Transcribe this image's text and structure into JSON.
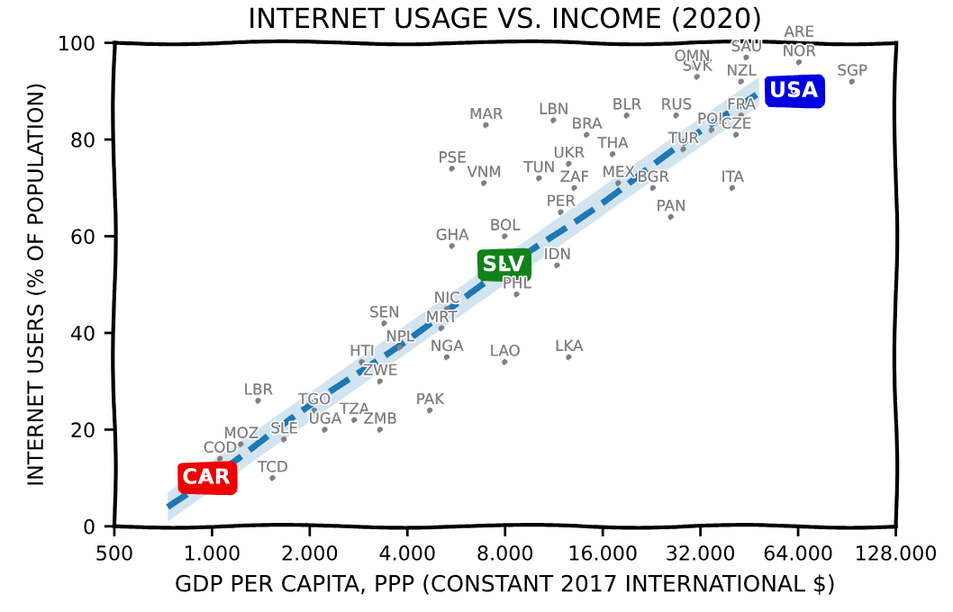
{
  "chart_data": {
    "type": "scatter",
    "title": "INTERNET USAGE VS. INCOME (2020)",
    "xlabel": "GDP PER CAPITA, PPP (CONSTANT 2017 INTERNATIONAL $)",
    "ylabel": "INTERNET USERS (% OF POPULATION)",
    "log": "x",
    "xlim": [
      500,
      128000
    ],
    "ylim": [
      0,
      100
    ],
    "xticks": [
      500,
      {
        "value": 1000,
        "label": "1.000"
      },
      {
        "value": 2000,
        "label": "2.000"
      },
      {
        "value": 4000,
        "label": "4.000"
      },
      {
        "value": 8000,
        "label": "8.000"
      },
      {
        "value": 16000,
        "label": "16.000"
      },
      {
        "value": 32000,
        "label": "32.000"
      },
      {
        "value": 64000,
        "label": "64.000"
      },
      {
        "value": 128000,
        "label": "128.000"
      }
    ],
    "yticks": [
      0,
      20,
      40,
      60,
      80,
      100
    ],
    "series": [
      {
        "type": "line",
        "color": "#1f77b4",
        "line_style": "dashed",
        "x": [
          730,
          48500
        ],
        "values": [
          4,
          90
        ],
        "lower": [
          1,
          87
        ],
        "upper": [
          7,
          93
        ]
      },
      {
        "type": "scatter",
        "color": "#808080",
        "x": [
          7000,
          5500,
          6900,
          5500,
          8000,
          11600,
          8700,
          11900,
          12600,
          13100,
          17900,
          10200,
          14300,
          11300,
          19000,
          27000,
          17200,
          28400,
          22900,
          40200,
          26000,
          42800,
          34700,
          41300,
          31300,
          30200,
          42800,
          44400,
          64500,
          64500,
          94000,
          3400,
          5300,
          5100,
          3800,
          2900,
          5300,
          8000,
          3300,
          1390,
          2070,
          4700,
          2750,
          3300,
          2230,
          1670,
          1230,
          1060,
          1540,
          12600
        ],
        "values": [
          83,
          74,
          71,
          58,
          60,
          54,
          48,
          65,
          75,
          70,
          71,
          72,
          81,
          84,
          85,
          85,
          77,
          78,
          70,
          70,
          64,
          85,
          82,
          81,
          93,
          95,
          92,
          97,
          100,
          96,
          92,
          42,
          45,
          41,
          37,
          34,
          35,
          34,
          30,
          26,
          24,
          24,
          22,
          20,
          20,
          18,
          17,
          14,
          10,
          35
        ],
        "value_labels": [
          "MAR",
          "PSE",
          "VNM",
          "GHA",
          "BOL",
          "IDN",
          "PHL",
          "PER",
          "UKR",
          "ZAF",
          "MEX",
          "TUN",
          "BRA",
          "LBN",
          "BLR",
          "RUS",
          "THA",
          "TUR",
          "BGR",
          "ITA",
          "PAN",
          "FRA",
          "POL",
          "CZE",
          "SVK",
          "OMN",
          "NZL",
          "SAU",
          "ARE",
          "NOR",
          "SGP",
          "SEN",
          "NIC",
          "MRT",
          "NPL",
          "HTI",
          "NGA",
          "LAO",
          "ZWE",
          "LBR",
          "TGO",
          "PAK",
          "TZA",
          "ZMB",
          "UGA",
          "SLE",
          "MOZ",
          "COD",
          "TCD",
          "LKA"
        ]
      },
      {
        "type": "scatter",
        "colors": [
          "#ee0000",
          "#11821b",
          "#0000e0"
        ],
        "x": [
          960,
          7900,
          62000
        ],
        "values": [
          10,
          54,
          90
        ],
        "value_labels": [
          "CAR",
          "SLV",
          "USA"
        ]
      }
    ]
  }
}
